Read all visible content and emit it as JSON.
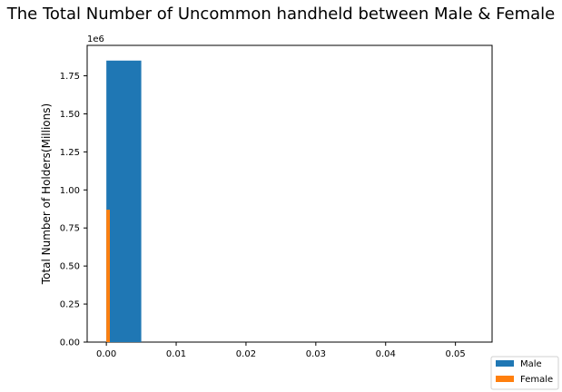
{
  "chart_data": {
    "type": "bar",
    "title": "The Total Number of Uncommon handheld between Male & Female",
    "xlabel": "",
    "ylabel": "Total Number of Holders(Millions)",
    "y_offset_label": "1e6",
    "xlim": [
      -0.00275,
      0.05525
    ],
    "ylim": [
      0,
      1950000
    ],
    "xticks": [
      "0.00",
      "0.01",
      "0.02",
      "0.03",
      "0.04",
      "0.05"
    ],
    "xtick_values": [
      0,
      0.01,
      0.02,
      0.03,
      0.04,
      0.05
    ],
    "yticks": [
      "0.00",
      "0.25",
      "0.50",
      "0.75",
      "1.00",
      "1.25",
      "1.50",
      "1.75"
    ],
    "ytick_values": [
      0,
      250000,
      500000,
      750000,
      1000000,
      1250000,
      1500000,
      1750000
    ],
    "grid": false,
    "legend_position": "outside-bottom-right",
    "series": [
      {
        "name": "Male",
        "color": "#1f77b4",
        "bars": [
          {
            "x_start": 0,
            "x_end": 0.005,
            "value": 1850000
          }
        ]
      },
      {
        "name": "Female",
        "color": "#ff7f0e",
        "bars": [
          {
            "x_start": 0,
            "x_end": 0.0005,
            "value": 870000
          }
        ]
      }
    ]
  }
}
